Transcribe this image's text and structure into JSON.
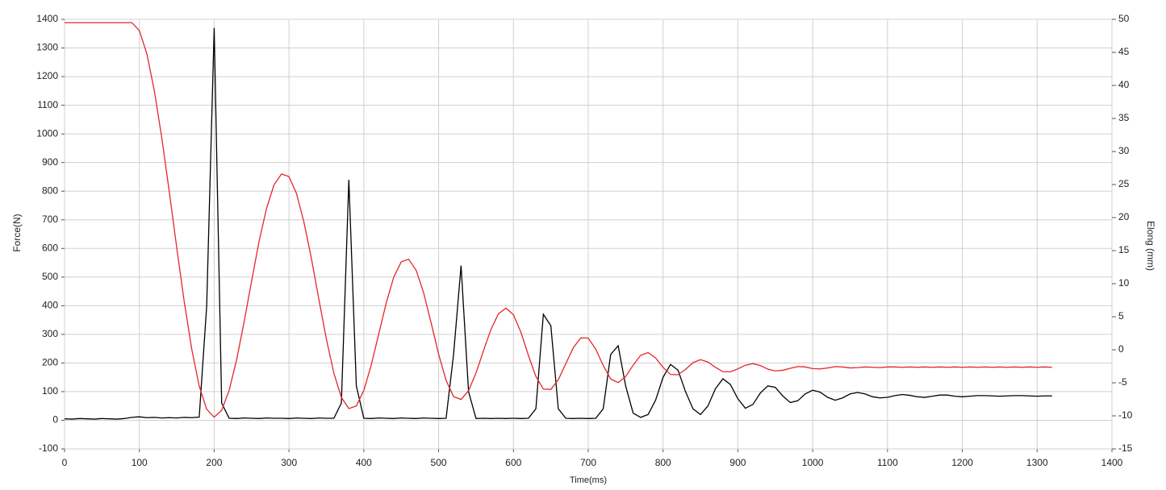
{
  "chart_data": {
    "type": "line",
    "xlabel": "Time(ms)",
    "ylabel": "Force(N)",
    "y2label": "Elong (mm)",
    "xlim": [
      0,
      1400
    ],
    "xticks": [
      0,
      100,
      200,
      300,
      400,
      500,
      600,
      700,
      800,
      900,
      1000,
      1100,
      1200,
      1300,
      1400
    ],
    "ylim": [
      -100,
      1400
    ],
    "yticks": [
      -100,
      0,
      100,
      200,
      300,
      400,
      500,
      600,
      700,
      800,
      900,
      1000,
      1100,
      1200,
      1300,
      1400
    ],
    "y2lim": [
      -15,
      50
    ],
    "y2ticks": [
      -15,
      -10,
      -5,
      0,
      5,
      10,
      15,
      20,
      25,
      30,
      35,
      40,
      45,
      50
    ],
    "grid": true,
    "x": [
      0,
      10,
      20,
      30,
      40,
      50,
      60,
      70,
      80,
      90,
      100,
      110,
      120,
      130,
      140,
      150,
      160,
      170,
      180,
      190,
      200,
      210,
      220,
      230,
      240,
      250,
      260,
      270,
      280,
      290,
      300,
      310,
      320,
      330,
      340,
      350,
      360,
      370,
      380,
      390,
      400,
      410,
      420,
      430,
      440,
      450,
      460,
      470,
      480,
      490,
      500,
      510,
      520,
      530,
      540,
      550,
      560,
      570,
      580,
      590,
      600,
      610,
      620,
      630,
      640,
      650,
      660,
      670,
      680,
      690,
      700,
      710,
      720,
      730,
      740,
      750,
      760,
      770,
      780,
      790,
      800,
      810,
      820,
      830,
      840,
      850,
      860,
      870,
      880,
      890,
      900,
      910,
      920,
      930,
      940,
      950,
      960,
      970,
      980,
      990,
      1000,
      1010,
      1020,
      1030,
      1040,
      1050,
      1060,
      1070,
      1080,
      1090,
      1100,
      1110,
      1120,
      1130,
      1140,
      1150,
      1160,
      1170,
      1180,
      1190,
      1200,
      1210,
      1220,
      1230,
      1240,
      1250,
      1260,
      1270,
      1280,
      1290,
      1300,
      1310,
      1320
    ],
    "series": [
      {
        "color": "#000000",
        "axis": "y",
        "values": [
          5,
          4,
          6,
          5,
          4,
          6,
          5,
          4,
          6,
          10,
          12,
          9,
          10,
          8,
          9,
          8,
          10,
          9,
          11,
          400,
          1370,
          60,
          7,
          6,
          8,
          7,
          6,
          8,
          7,
          7,
          6,
          8,
          7,
          6,
          8,
          7,
          7,
          60,
          840,
          120,
          7,
          6,
          8,
          7,
          6,
          8,
          7,
          6,
          8,
          7,
          6,
          7,
          230,
          540,
          100,
          6,
          7,
          6,
          7,
          6,
          7,
          6,
          7,
          40,
          370,
          330,
          40,
          7,
          6,
          7,
          6,
          7,
          40,
          230,
          260,
          120,
          25,
          10,
          20,
          70,
          150,
          195,
          175,
          100,
          40,
          20,
          50,
          110,
          145,
          125,
          75,
          42,
          55,
          95,
          120,
          115,
          85,
          62,
          68,
          92,
          105,
          98,
          80,
          70,
          78,
          92,
          97,
          92,
          82,
          78,
          80,
          86,
          90,
          87,
          82,
          80,
          84,
          88,
          88,
          84,
          82,
          84,
          86,
          86,
          85,
          84,
          85,
          86,
          86,
          85,
          84,
          85,
          85
        ]
      },
      {
        "color": "#e3262b",
        "axis": "y2",
        "values": [
          49.5,
          49.5,
          49.5,
          49.5,
          49.5,
          49.5,
          49.5,
          49.5,
          49.5,
          49.5,
          48.3,
          44.8,
          39.2,
          32.05,
          23.9,
          15.4,
          7.25,
          0.1,
          -5.5,
          -9.0,
          -10.2,
          -9.16,
          -6.15,
          -1.5,
          4.2,
          10.4,
          16.4,
          21.4,
          24.97,
          26.6,
          26.2,
          23.65,
          19.3,
          13.8,
          7.6,
          1.6,
          -3.55,
          -7.2,
          -8.9,
          -8.5,
          -6.16,
          -2.3,
          2.4,
          7.1,
          10.96,
          13.3,
          13.7,
          12.03,
          8.6,
          4.06,
          -0.66,
          -4.63,
          -7.08,
          -7.52,
          -6.19,
          -3.51,
          -0.13,
          3.1,
          5.45,
          6.3,
          5.31,
          2.65,
          -0.84,
          -4.04,
          -5.95,
          -6.0,
          -4.51,
          -2.1,
          0.31,
          1.8,
          1.77,
          0.1,
          -2.38,
          -4.42,
          -4.97,
          -4.05,
          -2.34,
          -0.84,
          -0.43,
          -1.23,
          -2.66,
          -3.74,
          -3.78,
          -2.97,
          -1.95,
          -1.5,
          -1.86,
          -2.66,
          -3.31,
          -3.34,
          -2.89,
          -2.34,
          -2.1,
          -2.38,
          -2.93,
          -3.2,
          -3.1,
          -2.8,
          -2.55,
          -2.6,
          -2.85,
          -2.9,
          -2.75,
          -2.55,
          -2.6,
          -2.75,
          -2.7,
          -2.6,
          -2.65,
          -2.7,
          -2.6,
          -2.6,
          -2.65,
          -2.6,
          -2.65,
          -2.6,
          -2.65,
          -2.6,
          -2.65,
          -2.6,
          -2.65,
          -2.6,
          -2.65,
          -2.6,
          -2.65,
          -2.6,
          -2.65,
          -2.6,
          -2.65,
          -2.6,
          -2.65,
          -2.6,
          -2.65
        ]
      }
    ]
  }
}
